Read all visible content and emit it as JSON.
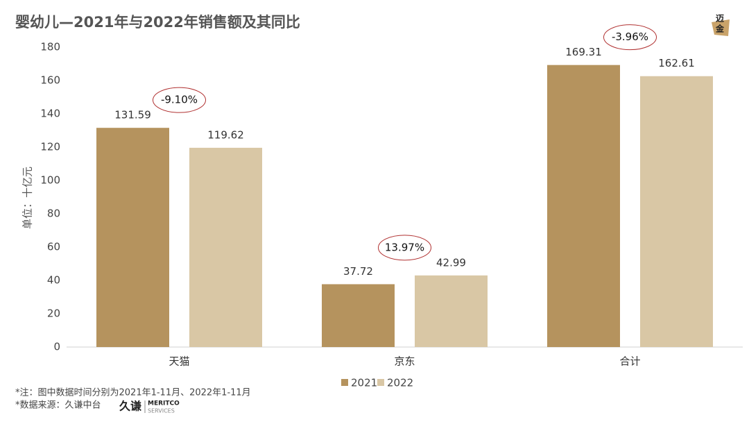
{
  "chart_data": {
    "type": "bar",
    "title": "婴幼儿—2021年与2022年销售额及其同比",
    "y_label": "单位：十亿元",
    "categories": [
      "天猫",
      "京东",
      "合计"
    ],
    "series": [
      {
        "name": "2021",
        "color": "#b5935e",
        "values": [
          131.59,
          37.72,
          169.31
        ]
      },
      {
        "name": "2022",
        "color": "#d9c7a5",
        "values": [
          119.62,
          42.99,
          162.61
        ]
      }
    ],
    "yoy_labels": [
      "-9.10%",
      "13.97%",
      "-3.96%"
    ],
    "ylim": [
      0,
      180
    ],
    "yticks": [
      0,
      20,
      40,
      60,
      80,
      100,
      120,
      140,
      160,
      180
    ],
    "grid": false
  },
  "notes": [
    "*注：图中数据时间分别为2021年1-11月、2022年1-11月",
    "*数据来源：久谦中台"
  ],
  "source_logo": {
    "name": "久谦",
    "brand": "MERITCO",
    "sub": "SERVICES"
  },
  "corner_logo": [
    "迈",
    "金"
  ]
}
